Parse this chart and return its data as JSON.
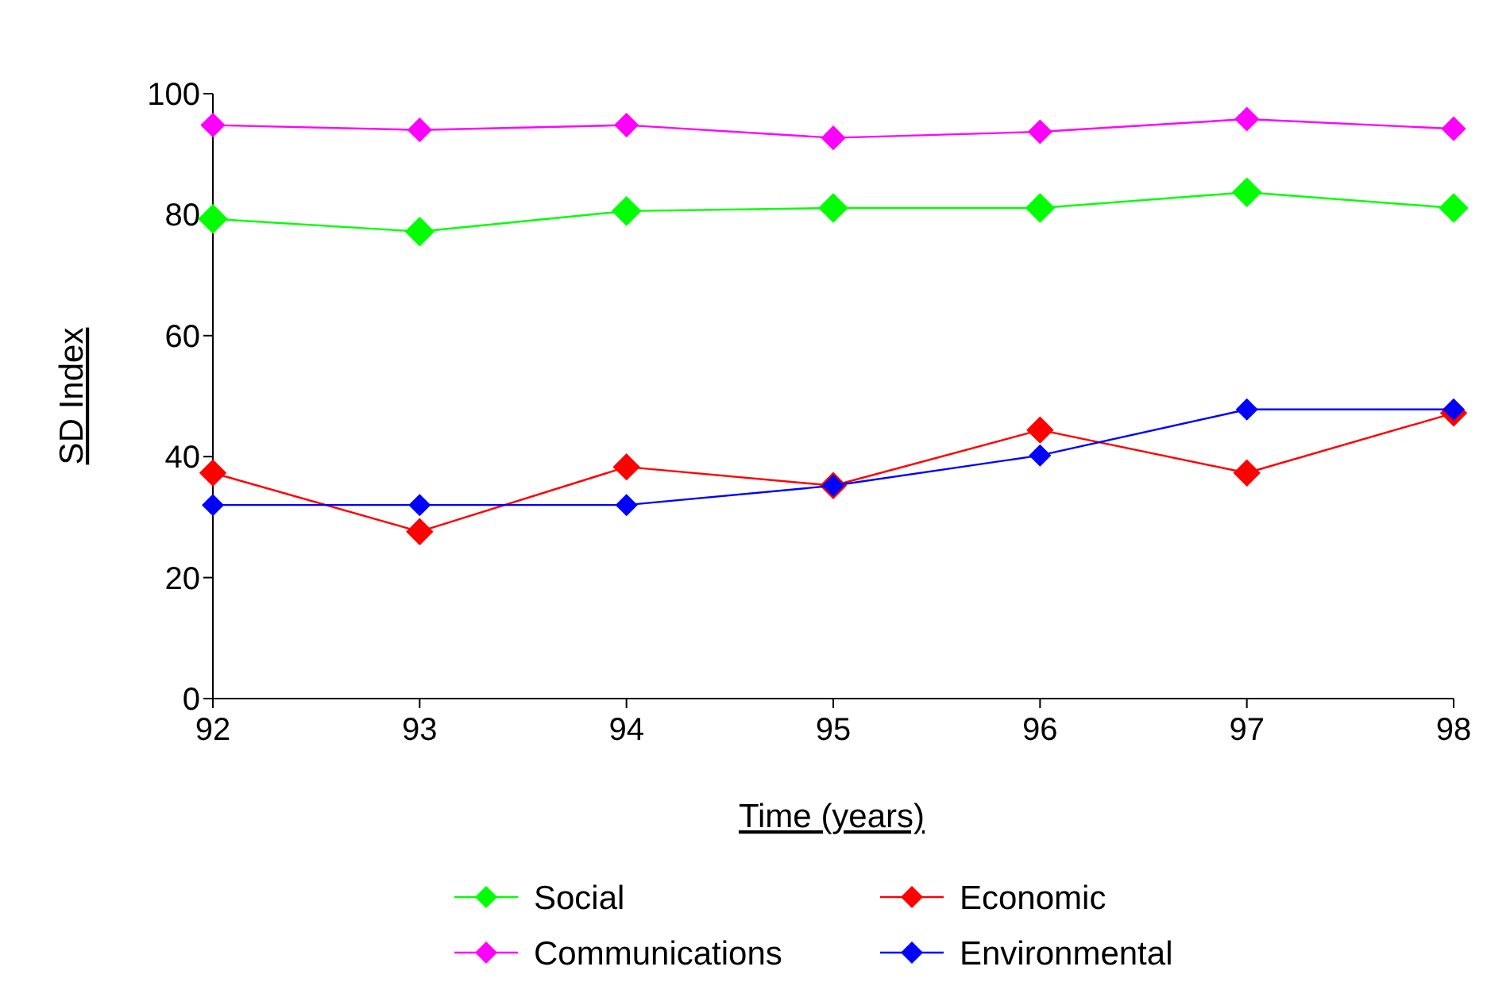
{
  "chart_data": {
    "type": "line",
    "xlabel": "Time (years)",
    "ylabel": "SD Index",
    "x": [
      92,
      93,
      94,
      95,
      96,
      97,
      98
    ],
    "xlim": [
      92,
      98
    ],
    "xticks": [
      92,
      93,
      94,
      95,
      96,
      97,
      98
    ],
    "ylim": [
      0,
      100
    ],
    "yticks": [
      0,
      20,
      40,
      60,
      80,
      100
    ],
    "grid": false,
    "legend": "bottom",
    "marker": "diamond",
    "line_style": "solid",
    "series": [
      {
        "name": "Social",
        "color": "#00ff00",
        "values": [
          79.3,
          77.2,
          80.6,
          81.1,
          81.1,
          83.7,
          81.1
        ]
      },
      {
        "name": "Economic",
        "color": "#ff0000",
        "values": [
          37.3,
          27.6,
          38.3,
          35.2,
          44.4,
          37.3,
          47.2
        ]
      },
      {
        "name": "Communications",
        "color": "#ff00ff",
        "values": [
          94.8,
          94.0,
          94.8,
          92.7,
          93.7,
          95.8,
          94.2
        ]
      },
      {
        "name": "Environmental",
        "color": "#0000ff",
        "values": [
          32.0,
          32.0,
          32.0,
          35.2,
          40.2,
          47.8,
          47.8
        ]
      }
    ]
  }
}
